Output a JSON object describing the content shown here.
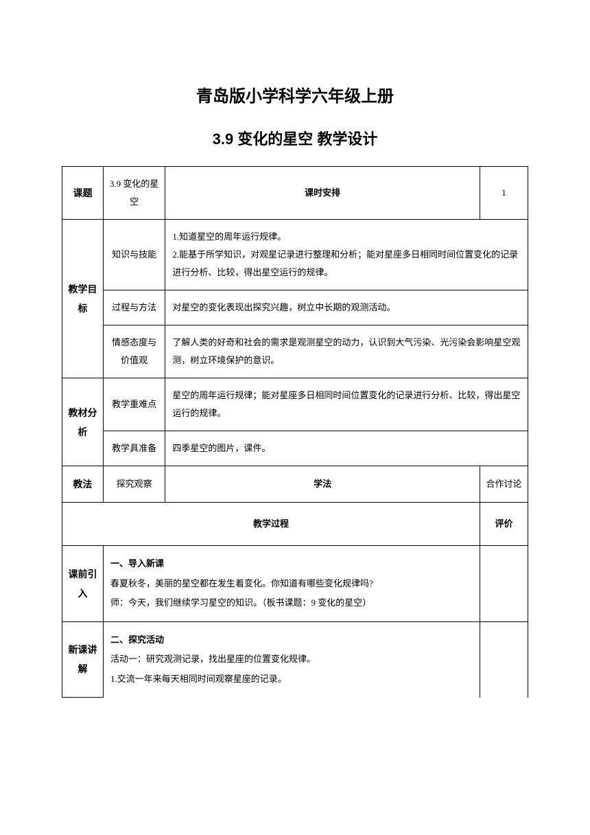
{
  "header": {
    "title": "青岛版小学科学六年级上册",
    "subtitle": "3.9 变化的星空 教学设计"
  },
  "lesson_info": {
    "topic_label": "课题",
    "topic_value": "3.9 变化的星空",
    "schedule_label": "课时安排",
    "schedule_value": "1"
  },
  "objectives": {
    "label": "教学目标",
    "row1_label": "知识与技能",
    "row1_content": "1.知道星空的周年运行规律。\n2.能基于所学知识，对观星记录进行整理和分析；能对星座多日相同时间位置变化的记录进行分析、比较，得出星空运行的规律。",
    "row2_label": "过程与方法",
    "row2_content": "对星空的变化表现出探究兴趣，树立中长期的观测活动。",
    "row3_label": "情感态度与价值观",
    "row3_content": "了解人类的好奇和社会的需求是观测星空的动力，认识到大气污染、光污染会影响星空观测，树立环境保护的意识。"
  },
  "analysis": {
    "label": "教材分析",
    "row1_label": "教学重难点",
    "row1_content": "星空的周年运行规律；能对星座多日相同时间位置变化的记录进行分析、比较，得出星空运行的规律。",
    "row2_label": "教学具准备",
    "row2_content": "四季星空的图片，课件。"
  },
  "methods": {
    "teach_label": "教法",
    "teach_value": "探究观察",
    "learn_label": "学法",
    "learn_value": "合作讨论"
  },
  "process": {
    "header_left": "教学过程",
    "header_right": "评价"
  },
  "intro": {
    "label": "课前引入",
    "heading": "一、导入新课",
    "line1": "春夏秋冬，美丽的星空都在发生着变化。你知道有哪些变化规律吗?",
    "line2": "师：今天，我们继续学习星空的知识。（板书课题：9 变化的星空）"
  },
  "new_lesson": {
    "label": "新课讲解",
    "heading": "二、探究活动",
    "line1": "活动一：研究观测记录，找出星座的位置变化规律。",
    "line2": "1.交流一年来每天相同时间观察星座的记录。"
  }
}
